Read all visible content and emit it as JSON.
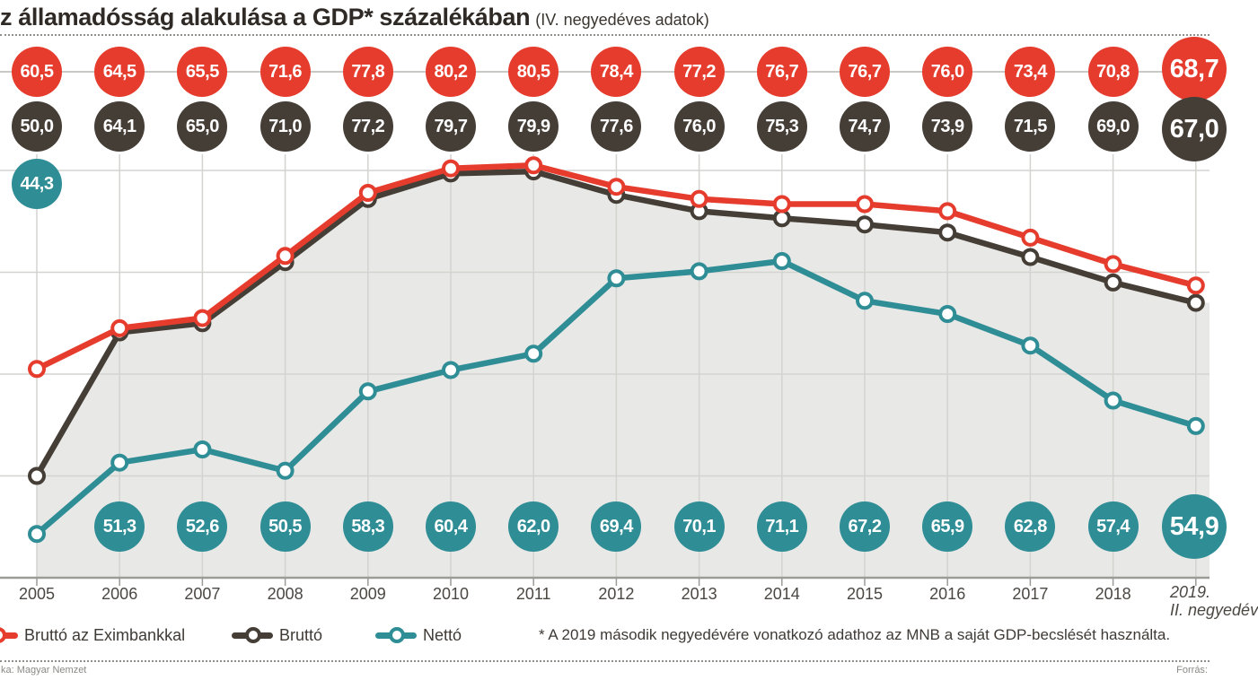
{
  "header": {
    "title": "z államadósság alakulása a GDP* százalékában",
    "subtitle": "(IV. negyedéves adatok)"
  },
  "chart_data": {
    "type": "line",
    "title": "z államadósság alakulása a GDP* százalékában (IV. negyedéves adatok)",
    "x": [
      2005,
      2006,
      2007,
      2008,
      2009,
      2010,
      2011,
      2012,
      2013,
      2014,
      2015,
      2016,
      2017,
      2018,
      2019
    ],
    "x_tick_labels": [
      "2005",
      "2006",
      "2007",
      "2008",
      "2009",
      "2010",
      "2011",
      "2012",
      "2013",
      "2014",
      "2015",
      "2016",
      "2017",
      "2018",
      "2019. II. negyedév"
    ],
    "last_tick": {
      "line1": "2019.",
      "line2": "II. negyedév"
    },
    "ylim": [
      40,
      86
    ],
    "grid": "horizontal lines every 10 (50,60,70,80) + vertical line per year",
    "legend_position": "bottom-left",
    "unit": "% of GDP",
    "decimal_style": "comma",
    "series": [
      {
        "name": "Bruttó az Eximbankkal",
        "color": "#e63c2d",
        "values": [
          60.5,
          64.5,
          65.5,
          71.6,
          77.8,
          80.2,
          80.5,
          78.4,
          77.2,
          76.7,
          76.7,
          76.0,
          73.4,
          70.8,
          68.7
        ],
        "labels": [
          "60,5",
          "64,5",
          "65,5",
          "71,6",
          "77,8",
          "80,2",
          "80,5",
          "78,4",
          "77,2",
          "76,7",
          "76,7",
          "76,0",
          "73,4",
          "70,8",
          "68,7"
        ]
      },
      {
        "name": "Bruttó",
        "color": "#453e37",
        "area_fill": "#e8e8e6",
        "values": [
          50.0,
          64.1,
          65.0,
          71.0,
          77.2,
          79.7,
          79.9,
          77.6,
          76.0,
          75.3,
          74.7,
          73.9,
          71.5,
          69.0,
          67.0
        ],
        "labels": [
          "50,0",
          "64,1",
          "65,0",
          "71,0",
          "77,2",
          "79,7",
          "79,9",
          "77,6",
          "76,0",
          "75,3",
          "74,7",
          "73,9",
          "71,5",
          "69,0",
          "67,0"
        ]
      },
      {
        "name": "Nettó",
        "color": "#2f8d96",
        "values": [
          44.3,
          51.3,
          52.6,
          50.5,
          58.3,
          60.4,
          62.0,
          69.4,
          70.1,
          71.1,
          67.2,
          65.9,
          62.8,
          57.4,
          54.9
        ],
        "labels": [
          "44,3",
          "51,3",
          "52,6",
          "50,5",
          "58,3",
          "60,4",
          "62,0",
          "69,4",
          "70,1",
          "71,1",
          "67,2",
          "65,9",
          "62,8",
          "57,4",
          "54,9"
        ]
      }
    ]
  },
  "legend": {
    "items": [
      {
        "label": "Bruttó az Eximbankkal",
        "color": "#e63c2d"
      },
      {
        "label": "Bruttó",
        "color": "#453e37"
      },
      {
        "label": "Nettó",
        "color": "#2f8d96"
      }
    ]
  },
  "footnote": "* A 2019 második negyedévére vonatkozó adathoz az MNB a saját GDP-becslését használta.",
  "footer": {
    "left_caption": "ka: Magyar Nemzet",
    "right_caption": "Forrás:"
  }
}
